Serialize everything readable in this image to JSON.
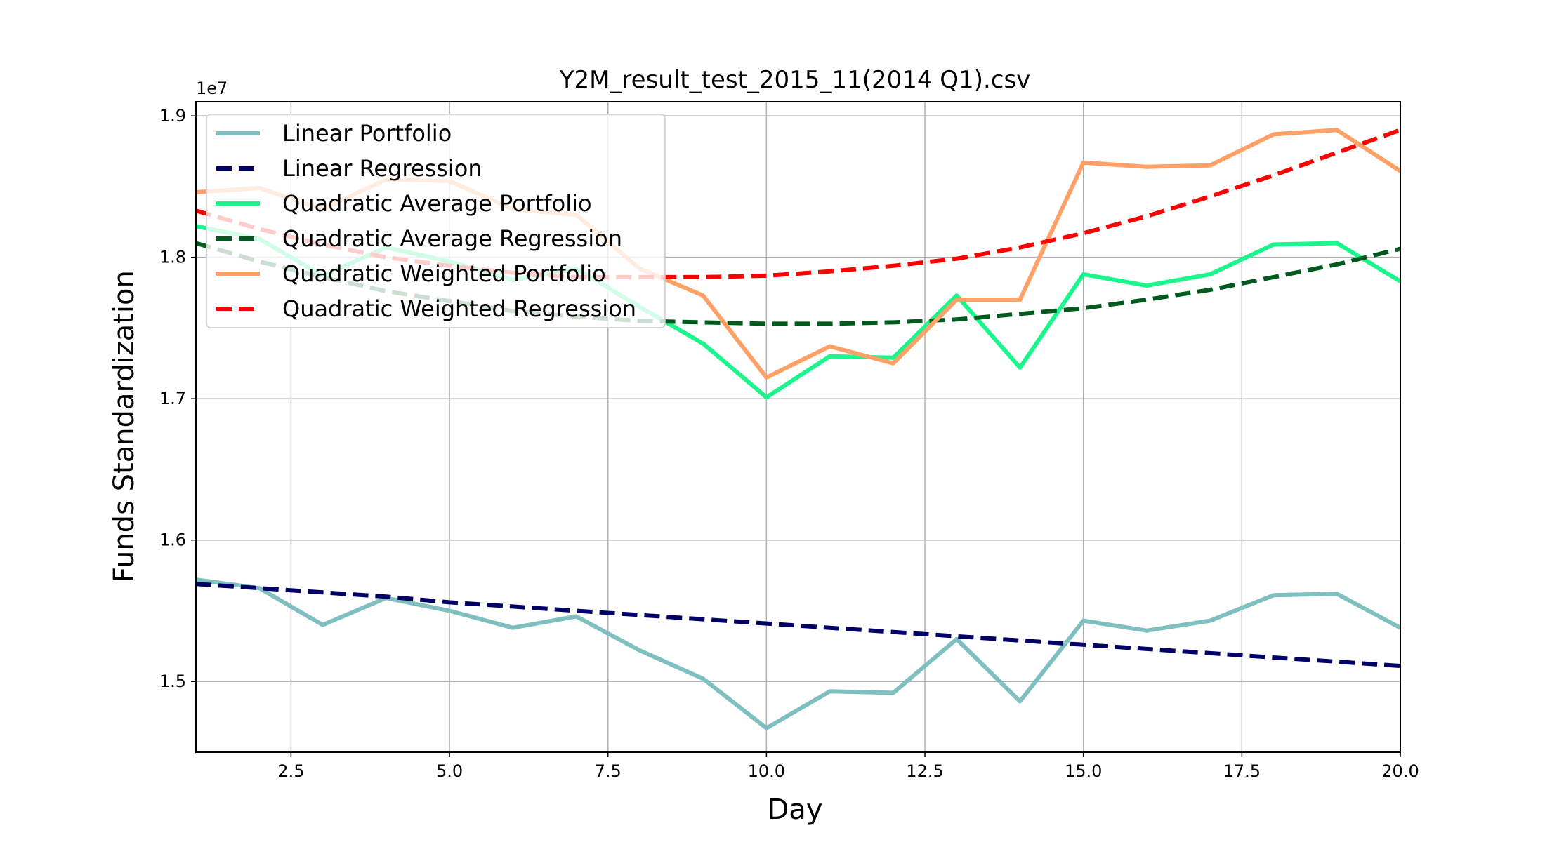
{
  "chart_data": {
    "type": "line",
    "title": "Y2M_result_test_2015_11(2014 Q1).csv",
    "xlabel": "Day",
    "ylabel": "Funds Standardization",
    "y_offset_label": "1e7",
    "xlim": [
      1,
      20
    ],
    "ylim": [
      14.5,
      19.1
    ],
    "xticks": [
      2.5,
      5.0,
      7.5,
      10.0,
      12.5,
      15.0,
      17.5,
      20.0
    ],
    "xtick_labels": [
      "2.5",
      "5.0",
      "7.5",
      "10.0",
      "12.5",
      "15.0",
      "17.5",
      "20.0"
    ],
    "yticks": [
      15,
      16,
      17,
      18,
      19
    ],
    "ytick_labels": [
      "1.5",
      "1.6",
      "1.7",
      "1.8",
      "1.9"
    ],
    "grid": true,
    "legend_position": "upper-left",
    "x": [
      1,
      2,
      3,
      4,
      5,
      6,
      7,
      8,
      9,
      10,
      11,
      12,
      13,
      14,
      15,
      16,
      17,
      18,
      19,
      20
    ],
    "series": [
      {
        "name": "Linear Portfolio",
        "color": "#7fbfbf",
        "style": "solid",
        "values": [
          15.72,
          15.66,
          15.4,
          15.59,
          15.5,
          15.38,
          15.46,
          15.22,
          15.02,
          14.67,
          14.93,
          14.92,
          15.3,
          14.86,
          15.43,
          15.36,
          15.43,
          15.61,
          15.62,
          15.38
        ]
      },
      {
        "name": "Linear Regression",
        "color": "#000066",
        "style": "dashed",
        "values": [
          15.69,
          15.66,
          15.63,
          15.6,
          15.56,
          15.53,
          15.5,
          15.47,
          15.44,
          15.41,
          15.38,
          15.35,
          15.32,
          15.29,
          15.26,
          15.23,
          15.2,
          15.17,
          15.14,
          15.11
        ]
      },
      {
        "name": "Quadratic Average Portfolio",
        "color": "#1af58c",
        "style": "solid",
        "values": [
          18.22,
          18.13,
          17.87,
          18.07,
          17.97,
          17.84,
          17.92,
          17.65,
          17.39,
          17.01,
          17.3,
          17.29,
          17.73,
          17.22,
          17.88,
          17.8,
          17.88,
          18.09,
          18.1,
          17.83
        ]
      },
      {
        "name": "Quadratic Average Regression",
        "color": "#005a1e",
        "style": "dashed",
        "values": [
          18.1,
          17.97,
          17.86,
          17.76,
          17.69,
          17.62,
          17.58,
          17.55,
          17.54,
          17.53,
          17.53,
          17.54,
          17.56,
          17.6,
          17.64,
          17.7,
          17.77,
          17.86,
          17.95,
          18.06
        ]
      },
      {
        "name": "Quadratic Weighted Portfolio",
        "color": "#ffa066",
        "style": "solid",
        "values": [
          18.46,
          18.49,
          18.34,
          18.55,
          18.54,
          18.34,
          18.3,
          17.92,
          17.73,
          17.15,
          17.37,
          17.25,
          17.7,
          17.7,
          18.67,
          18.64,
          18.65,
          18.87,
          18.9,
          18.61
        ]
      },
      {
        "name": "Quadratic Weighted Regression",
        "color": "#ff0000",
        "style": "dashed",
        "values": [
          18.33,
          18.2,
          18.09,
          18.0,
          17.94,
          17.89,
          17.86,
          17.86,
          17.86,
          17.87,
          17.9,
          17.94,
          17.99,
          18.07,
          18.17,
          18.29,
          18.43,
          18.58,
          18.74,
          18.9
        ]
      }
    ]
  }
}
